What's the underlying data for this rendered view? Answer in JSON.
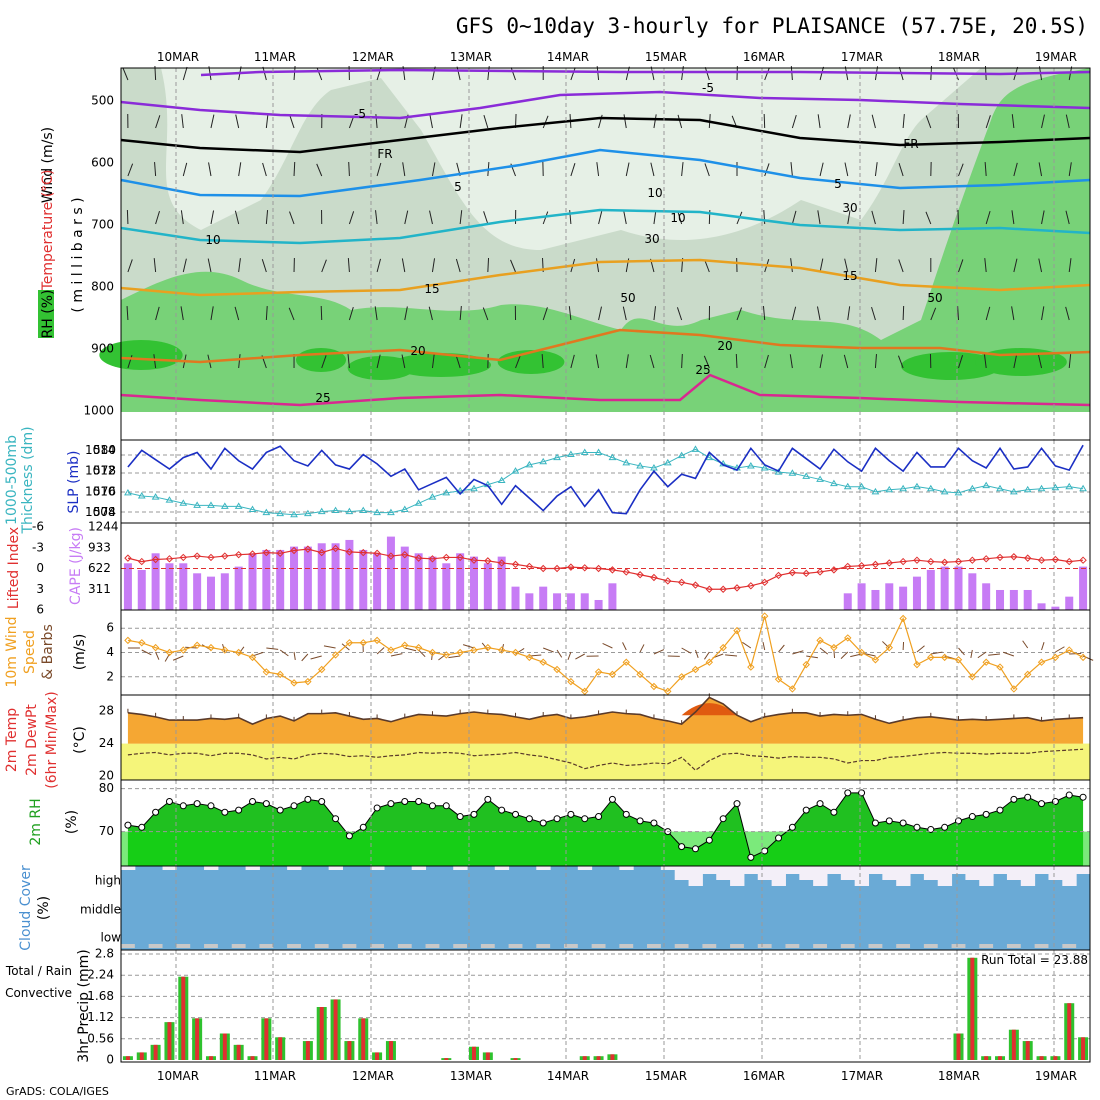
{
  "title": "GFS 0~10day 3-hourly for PLAISANCE (57.75E, 20.5S)",
  "credit": "GrADS: COLA/IGES",
  "colors": {
    "rh_dark": "#33c233",
    "rh_mid": "#78d278",
    "rh_light": "#c6d8c6",
    "rh_pale": "#e6f0e6",
    "slp": "#1b2fc4",
    "thickness": "#3ab5c0",
    "cape": "#c77cf5",
    "li": "#e03030",
    "wind_speed": "#f0a020",
    "barb": "#7a4a2a",
    "temp_fill": "#f5a733",
    "dew_fill": "#f5f57a",
    "rh_fill": "#20c020",
    "cloud": "#6aaad6",
    "precip_total": "#2ec22e",
    "precip_conv": "#e03030"
  },
  "dates": [
    "10MAR",
    "11MAR",
    "12MAR",
    "13MAR",
    "14MAR",
    "15MAR",
    "16MAR",
    "17MAR",
    "18MAR",
    "19MAR"
  ],
  "panels": {
    "upper": {
      "label_rh": "RH (%)",
      "label_temp": "Temperature (°C)",
      "label_wind": "Wind (m/s)",
      "ylabel": "( m i l l i b a r s )",
      "yticks": [
        "500",
        "600",
        "700",
        "800",
        "900",
        "1000"
      ],
      "contour_labels": [
        "-5",
        "-5",
        "FR",
        "FR",
        "5",
        "5",
        "10",
        "10",
        "15",
        "15",
        "20",
        "20",
        "25",
        "25",
        "10",
        "30",
        "30",
        "50",
        "50"
      ]
    },
    "slp": {
      "label_thk": "1000-500mb",
      "label_thk2": "Thickness (dm)",
      "label_slp": "SLP (mb)",
      "yticks_left": [
        "580",
        "578",
        "576",
        "574"
      ],
      "yticks_right": [
        "1014",
        "1012",
        "1010",
        "1008"
      ]
    },
    "cape": {
      "label_li": "Lifted Index",
      "label_cape": "CAPE (J/kg)",
      "yticks_left": [
        "-6",
        "-3",
        "0",
        "3",
        "6"
      ],
      "yticks_right": [
        "1244",
        "933",
        "622",
        "311"
      ]
    },
    "wind": {
      "label1": "10m Wind",
      "label2": "Speed",
      "label3": "& Barbs",
      "label_units": "(m/s)",
      "yticks": [
        "6",
        "4",
        "2"
      ]
    },
    "temp": {
      "label1": "2m Temp",
      "label2": "2m DewPt",
      "label3": "(6hr Min/Max)",
      "label_units": "(°C)",
      "yticks": [
        "28",
        "24",
        "20"
      ]
    },
    "rh": {
      "label1": "2m RH",
      "label_units": "(%)",
      "yticks": [
        "80",
        "70"
      ]
    },
    "cloud": {
      "label1": "Cloud Cover",
      "label_units": "(%)",
      "levels": [
        "high",
        "middle",
        "low"
      ]
    },
    "precip": {
      "label_total": "Total / Rain",
      "label_conv": "Convective",
      "ylabel": "3hr Precip (mm)",
      "yticks": [
        "2.8",
        "2.24",
        "1.68",
        "1.12",
        "0.56",
        "0"
      ],
      "run_total": "Run Total = 23.88"
    }
  },
  "chart_data": [
    {
      "type": "line",
      "name": "SLP",
      "title": "SLP (mb)",
      "ylim": [
        1007,
        1015
      ],
      "values": [
        1012.4,
        1014.0,
        1013.1,
        1012.2,
        1013.3,
        1013.8,
        1012.2,
        1014.2,
        1013.0,
        1012.2,
        1013.8,
        1014.4,
        1013.0,
        1012.5,
        1014.0,
        1012.6,
        1012.2,
        1013.6,
        1012.7,
        1011.5,
        1012.2,
        1010.2,
        1010.8,
        1011.4,
        1009.8,
        1011.2,
        1010.6,
        1008.8,
        1010.6,
        1009.4,
        1008.2,
        1009.6,
        1010.5,
        1008.6,
        1010.2,
        1008.0,
        1007.9,
        1010.2,
        1012.0,
        1010.5,
        1011.7,
        1011.3,
        1013.8,
        1012.6,
        1012.1,
        1014.2,
        1012.6,
        1012.0,
        1014.2,
        1013.2,
        1012.2,
        1014.1,
        1012.9,
        1012.0,
        1014.2,
        1013.0,
        1012.0,
        1013.8,
        1012.4,
        1012.4,
        1014.2,
        1013.0,
        1012.3,
        1014.2,
        1012.2,
        1012.4,
        1014.2,
        1012.5,
        1012.1,
        1014.5
      ]
    },
    {
      "type": "line",
      "name": "1000-500mb Thickness",
      "title": "Thickness (dm)",
      "ylim": [
        573,
        581
      ],
      "values": [
        575.9,
        575.6,
        575.5,
        575.2,
        574.9,
        574.7,
        574.7,
        574.6,
        574.6,
        574.3,
        574.0,
        573.9,
        573.8,
        573.9,
        574.1,
        574.2,
        574.1,
        574.2,
        574.0,
        574.0,
        574.3,
        574.9,
        575.5,
        575.9,
        576.1,
        576.3,
        576.7,
        577.1,
        578.0,
        578.6,
        578.9,
        579.3,
        579.6,
        579.8,
        579.8,
        579.3,
        578.8,
        578.5,
        578.3,
        578.8,
        579.5,
        580.1,
        579.3,
        578.7,
        578.3,
        578.5,
        578.3,
        577.9,
        577.8,
        577.5,
        577.2,
        576.8,
        576.5,
        576.5,
        576.0,
        576.2,
        576.3,
        576.5,
        576.3,
        576.0,
        575.9,
        576.3,
        576.6,
        576.3,
        576.0,
        576.2,
        576.3,
        576.4,
        576.5,
        576.3
      ]
    },
    {
      "type": "bar",
      "name": "CAPE",
      "title": "CAPE (J/kg)",
      "ylim": [
        0,
        1244
      ],
      "values": [
        700,
        600,
        850,
        700,
        700,
        550,
        500,
        550,
        650,
        850,
        900,
        900,
        950,
        950,
        1000,
        1000,
        1050,
        900,
        850,
        1100,
        950,
        850,
        800,
        700,
        850,
        800,
        700,
        800,
        350,
        250,
        350,
        250,
        250,
        250,
        150,
        400,
        0,
        0,
        0,
        0,
        0,
        0,
        0,
        0,
        0,
        0,
        0,
        0,
        0,
        0,
        0,
        0,
        250,
        400,
        300,
        400,
        350,
        500,
        600,
        650,
        650,
        550,
        400,
        300,
        300,
        300,
        100,
        50,
        200,
        650
      ]
    },
    {
      "type": "line",
      "name": "Lifted Index",
      "title": "Lifted Index",
      "ylim": [
        6,
        -6
      ],
      "values": [
        -1.5,
        -1.0,
        -1.3,
        -1.4,
        -1.6,
        -1.8,
        -1.6,
        -1.8,
        -2.0,
        -2.1,
        -2.3,
        -2.2,
        -2.6,
        -2.8,
        -2.3,
        -2.9,
        -2.4,
        -2.3,
        -2.2,
        -1.8,
        -2.0,
        -1.5,
        -1.4,
        -1.6,
        -1.6,
        -1.2,
        -1.1,
        -0.8,
        -0.6,
        -0.3,
        0.0,
        0.0,
        -0.2,
        -0.1,
        0.0,
        0.2,
        0.5,
        0.9,
        1.3,
        1.8,
        2.0,
        2.4,
        3.0,
        3.0,
        2.8,
        2.5,
        2.0,
        1.0,
        0.6,
        0.7,
        0.5,
        0.2,
        -0.3,
        -0.4,
        -0.6,
        -0.8,
        -1.0,
        -1.2,
        -1.0,
        -0.9,
        -1.0,
        -1.2,
        -1.4,
        -1.6,
        -1.7,
        -1.5,
        -1.2,
        -1.3,
        -1.0,
        -1.2
      ]
    },
    {
      "type": "line",
      "name": "10m Wind Speed",
      "title": "Speed (m/s)",
      "ylim": [
        0.5,
        7.5
      ],
      "values": [
        5.0,
        4.8,
        4.4,
        4.0,
        4.2,
        4.6,
        4.4,
        4.2,
        4.0,
        3.6,
        2.4,
        2.2,
        1.5,
        1.6,
        2.6,
        3.8,
        4.8,
        4.8,
        5.0,
        4.2,
        4.6,
        4.4,
        4.0,
        3.8,
        4.0,
        4.2,
        4.4,
        4.2,
        4.0,
        3.6,
        3.2,
        2.6,
        1.6,
        0.8,
        2.4,
        2.2,
        3.2,
        2.2,
        1.2,
        0.8,
        2.0,
        2.6,
        3.2,
        4.4,
        5.8,
        2.8,
        7.0,
        1.8,
        1.0,
        3.0,
        5.0,
        4.4,
        5.2,
        4.0,
        3.4,
        4.4,
        6.8,
        3.0,
        3.6,
        3.6,
        3.4,
        2.0,
        3.2,
        2.8,
        1.0,
        2.2,
        3.2,
        3.6,
        4.2,
        3.6
      ]
    },
    {
      "type": "area",
      "name": "2m Temp",
      "title": "2m Temp (°C)",
      "ylim": [
        19.5,
        30
      ],
      "values": [
        27.8,
        27.6,
        27.3,
        26.9,
        26.9,
        26.9,
        27.1,
        27.0,
        27.2,
        26.4,
        27.1,
        27.4,
        26.8,
        27.7,
        27.7,
        27.8,
        27.4,
        27.0,
        27.1,
        26.7,
        27.2,
        27.6,
        27.5,
        27.4,
        27.7,
        27.9,
        27.7,
        27.6,
        27.3,
        27.0,
        27.4,
        27.6,
        27.1,
        27.3,
        27.6,
        27.9,
        27.7,
        27.6,
        27.1,
        26.8,
        26.4,
        27.9,
        29.7,
        28.9,
        27.5,
        26.7,
        27.3,
        27.6,
        27.8,
        27.8,
        27.4,
        27.6,
        27.5,
        27.6,
        27.0,
        26.5,
        26.9,
        27.2,
        27.3,
        27.1,
        26.9,
        27.0,
        26.9,
        27.0,
        27.1,
        27.2,
        26.8,
        27.0,
        27.1,
        27.2
      ]
    },
    {
      "type": "line",
      "name": "2m DewPt",
      "title": "2m DewPt (°C)",
      "ylim": [
        19.5,
        30
      ],
      "values": [
        22.6,
        22.8,
        22.9,
        22.6,
        22.8,
        22.8,
        22.5,
        22.8,
        22.8,
        22.6,
        22.1,
        22.3,
        22.1,
        22.6,
        22.8,
        22.7,
        22.4,
        22.5,
        22.3,
        22.5,
        22.6,
        22.9,
        22.8,
        22.9,
        22.8,
        22.5,
        22.6,
        22.7,
        22.9,
        22.6,
        22.4,
        22.0,
        21.6,
        20.9,
        21.3,
        21.6,
        21.3,
        21.4,
        21.6,
        21.5,
        22.3,
        20.7,
        21.9,
        22.7,
        22.8,
        22.5,
        22.4,
        22.2,
        22.4,
        22.3,
        22.3,
        22.1,
        21.6,
        21.9,
        21.9,
        22.3,
        22.4,
        22.6,
        22.8,
        22.9,
        22.8,
        22.8,
        22.7,
        22.8,
        22.8,
        22.8,
        23.0,
        23.1,
        23.2,
        23.3
      ]
    },
    {
      "type": "area",
      "name": "2m RH",
      "title": "2m RH (%)",
      "ylim": [
        62,
        82
      ],
      "values": [
        71.5,
        71.0,
        74.5,
        77.0,
        76.0,
        76.5,
        76.0,
        74.5,
        75.0,
        77.0,
        76.5,
        75.0,
        76.0,
        77.5,
        77.0,
        73.0,
        69.0,
        71.0,
        75.5,
        76.5,
        77.0,
        77.0,
        76.0,
        76.0,
        73.5,
        74.0,
        77.5,
        75.0,
        74.0,
        73.0,
        72.0,
        73.0,
        74.0,
        73.0,
        73.5,
        77.5,
        74.0,
        72.5,
        72.0,
        70.0,
        66.5,
        66.0,
        68.0,
        73.0,
        76.5,
        64.0,
        65.5,
        68.5,
        71.0,
        75.0,
        76.5,
        74.5,
        79.0,
        79.0,
        72.0,
        72.5,
        72.0,
        71.0,
        70.5,
        71.0,
        72.5,
        73.5,
        74.0,
        75.0,
        77.5,
        78.0,
        76.5,
        77.0,
        78.5,
        78.0
      ]
    },
    {
      "type": "bar",
      "name": "3hr Precip Total",
      "title": "3hr Precip (mm)",
      "ylim": [
        0,
        2.8
      ],
      "values": [
        0.1,
        0.2,
        0.4,
        1.0,
        2.2,
        1.1,
        0.1,
        0.7,
        0.4,
        0.1,
        1.1,
        0.6,
        0,
        0.5,
        1.4,
        1.6,
        0.5,
        1.1,
        0.2,
        0.5,
        0,
        0,
        0,
        0.05,
        0,
        0.35,
        0.2,
        0,
        0.05,
        0,
        0,
        0,
        0,
        0.1,
        0.1,
        0.15,
        0,
        0,
        0,
        0,
        0,
        0,
        0,
        0,
        0,
        0,
        0,
        0,
        0,
        0,
        0,
        0,
        0,
        0,
        0,
        0,
        0,
        0,
        0,
        0,
        0.7,
        2.7,
        0.1,
        0.1,
        0.8,
        0.5,
        0.1,
        0.1,
        1.5,
        0.6
      ]
    }
  ]
}
